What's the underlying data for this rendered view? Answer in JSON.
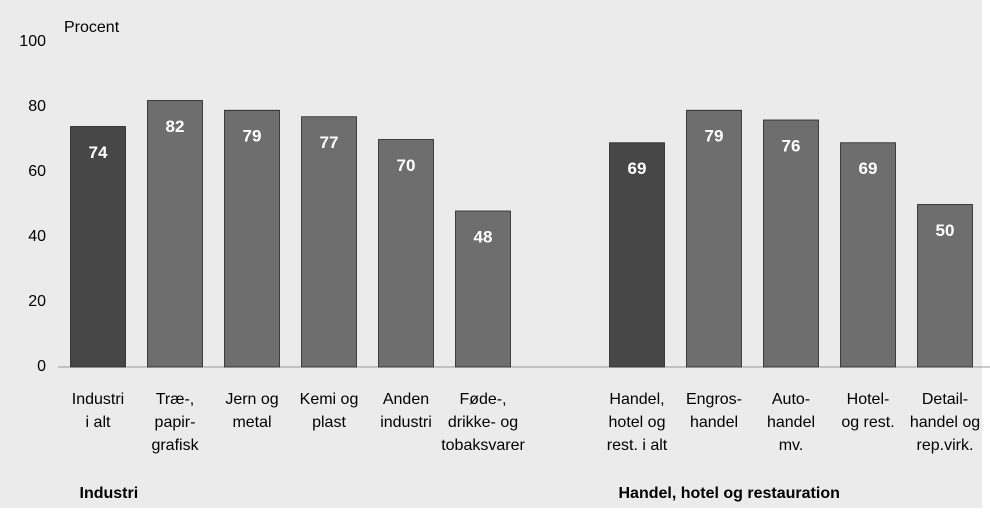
{
  "chart_data": {
    "type": "bar",
    "axis_label": "Procent",
    "categories": [
      [
        "Industri",
        "i alt"
      ],
      [
        "Træ-,",
        "papir-",
        "grafisk"
      ],
      [
        "Jern og",
        "metal"
      ],
      [
        "Kemi og",
        "plast"
      ],
      [
        "Anden",
        "industri"
      ],
      [
        "Føde-,",
        "drikke- og",
        "tobaksvarer"
      ],
      null,
      [
        "Handel,",
        "hotel og",
        "rest. i alt"
      ],
      [
        "Engros-",
        "handel"
      ],
      [
        "Auto-",
        "handel",
        "mv."
      ],
      [
        "Hotel-",
        "og rest."
      ],
      [
        "Detail-",
        "handel og",
        "rep.virk."
      ]
    ],
    "values": [
      74,
      82,
      79,
      77,
      70,
      48,
      null,
      69,
      79,
      76,
      69,
      50
    ],
    "colors": [
      "#474747",
      "#6e6e6e",
      "#6e6e6e",
      "#6e6e6e",
      "#6e6e6e",
      "#6e6e6e",
      null,
      "#474747",
      "#6e6e6e",
      "#6e6e6e",
      "#6e6e6e",
      "#6e6e6e"
    ],
    "groups": [
      {
        "label": "Industri",
        "from": 0
      },
      {
        "label": "Handel, hotel og restauration",
        "from": 7
      }
    ],
    "ylim": [
      0,
      100
    ],
    "yticks": [
      0,
      20,
      40,
      60,
      80,
      100
    ],
    "grid": false
  }
}
